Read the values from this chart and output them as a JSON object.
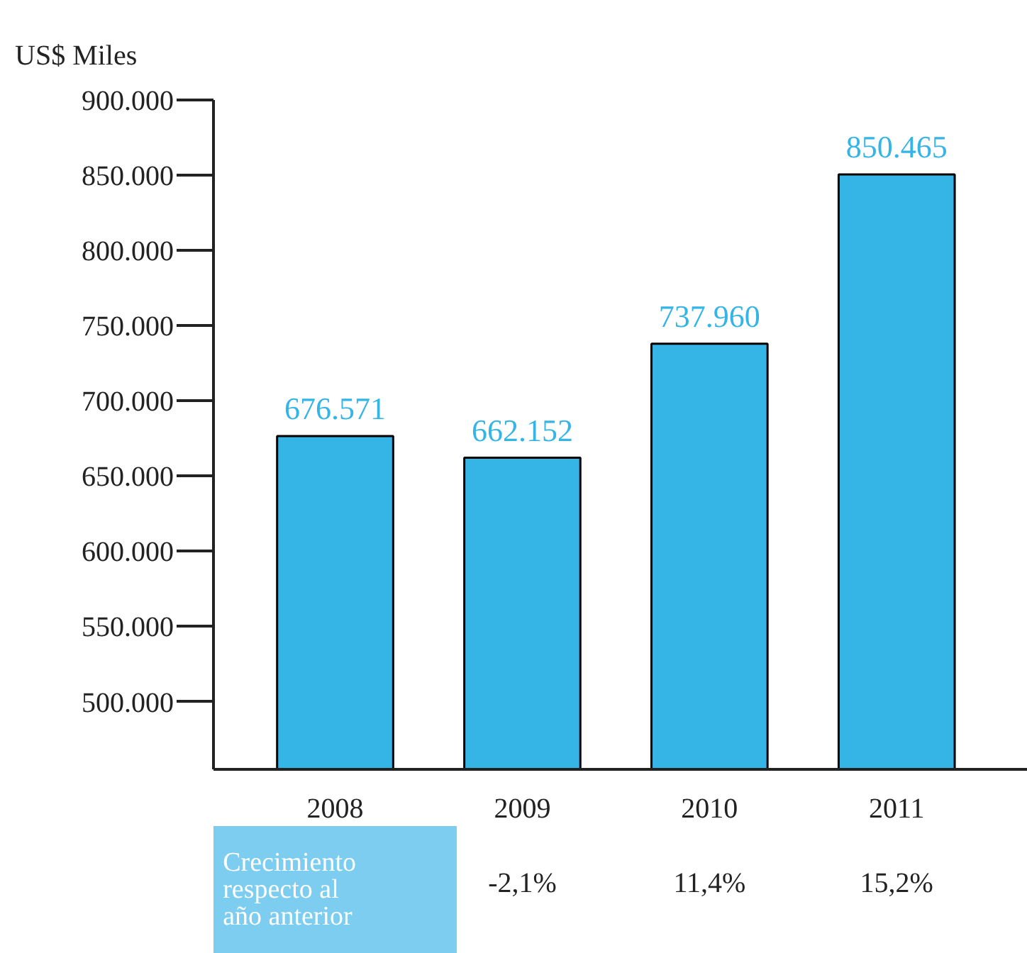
{
  "chart_data": {
    "type": "bar",
    "ylabel": "US$ Miles",
    "categories": [
      "2008",
      "2009",
      "2010",
      "2011"
    ],
    "values": [
      676571,
      662152,
      737960,
      850465
    ],
    "value_labels": [
      "676.571",
      "662.152",
      "737.960",
      "850.465"
    ],
    "color": "#35b4e6",
    "ylim": [
      455000,
      900000
    ],
    "yticks": [
      {
        "value": 500000,
        "label": "500.000"
      },
      {
        "value": 550000,
        "label": "550.000"
      },
      {
        "value": 600000,
        "label": "600.000"
      },
      {
        "value": 650000,
        "label": "650.000"
      },
      {
        "value": 700000,
        "label": "700.000"
      },
      {
        "value": 750000,
        "label": "750.000"
      },
      {
        "value": 800000,
        "label": "800.000"
      },
      {
        "value": 850000,
        "label": "850.000"
      },
      {
        "value": 900000,
        "label": "900.000"
      }
    ],
    "grid": false,
    "annotations": [
      "Crecimiento\nrespecto al\naño anterior",
      "-2,1%",
      "11,4%",
      "15,2%"
    ]
  }
}
